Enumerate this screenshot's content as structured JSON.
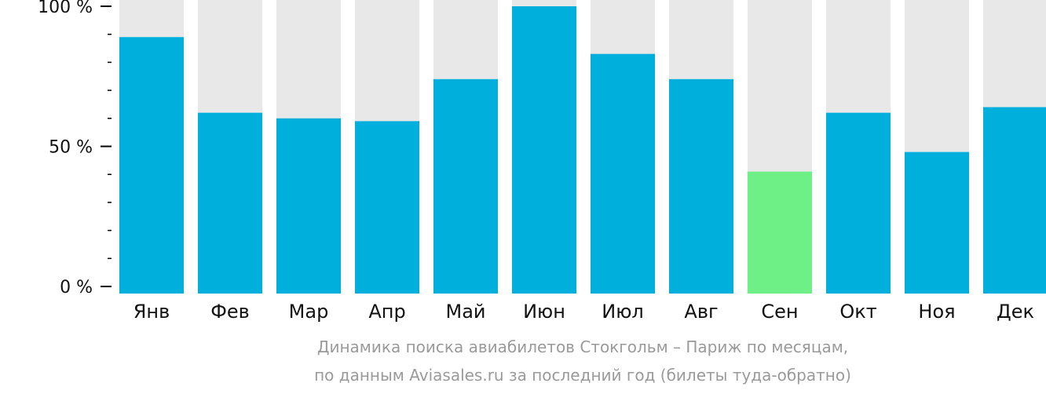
{
  "chart_data": {
    "type": "bar",
    "categories": [
      "Янв",
      "Фев",
      "Мар",
      "Апр",
      "Май",
      "Июн",
      "Июл",
      "Авг",
      "Сен",
      "Окт",
      "Ноя",
      "Дек"
    ],
    "values": [
      89,
      62,
      60,
      59,
      74,
      100,
      83,
      74,
      41,
      62,
      48,
      64
    ],
    "ylim": [
      0,
      100
    ],
    "y_ticks": [
      {
        "value": 0,
        "label": "0 %"
      },
      {
        "value": 50,
        "label": "50 %"
      },
      {
        "value": 100,
        "label": "100 %"
      }
    ],
    "minor_tick_step": 10,
    "highlight_index": 8,
    "colors": {
      "bar": "#00afdc",
      "highlight": "#6ef087",
      "background_bar": "#e8e8e8",
      "axis": "#000000",
      "tick_label": "#111111"
    }
  },
  "caption": {
    "line1": "Динамика поиска авиабилетов Стокгольм – Париж по месяцам,",
    "line2": "по данным Aviasales.ru за последний год (билеты туда-обратно)"
  }
}
